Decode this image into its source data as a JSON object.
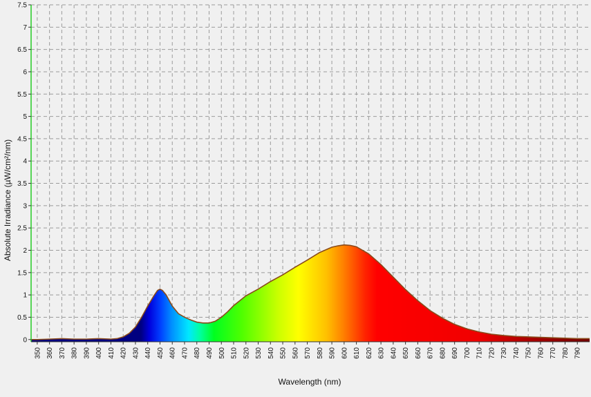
{
  "chart_data": {
    "type": "area",
    "xlabel": "Wavelength (nm)",
    "ylabel": "Absolute Irradiance (µW/cm²/nm)",
    "xlim": [
      345,
      800
    ],
    "ylim": [
      -0.05,
      7.5
    ],
    "grid": true,
    "x_ticks": [
      "350",
      "360",
      "370",
      "380",
      "390",
      "400",
      "410",
      "420",
      "430",
      "440",
      "450",
      "460",
      "470",
      "480",
      "490",
      "500",
      "510",
      "520",
      "530",
      "540",
      "550",
      "560",
      "570",
      "580",
      "590",
      "600",
      "610",
      "620",
      "630",
      "640",
      "650",
      "660",
      "670",
      "680",
      "690",
      "700",
      "710",
      "720",
      "730",
      "740",
      "750",
      "760",
      "770",
      "780",
      "790"
    ],
    "y_ticks": [
      "0",
      "0.5",
      "1",
      "1.5",
      "2",
      "2.5",
      "3",
      "3.5",
      "4",
      "4.5",
      "5",
      "5.5",
      "6",
      "6.5",
      "7",
      "7.5"
    ],
    "series": [
      {
        "x": [
          345,
          350,
          360,
          370,
          380,
          390,
          400,
          410,
          415,
          420,
          425,
          430,
          435,
          440,
          445,
          448,
          450,
          452,
          455,
          460,
          465,
          470,
          475,
          480,
          485,
          490,
          495,
          500,
          505,
          510,
          515,
          520,
          530,
          540,
          550,
          560,
          570,
          580,
          590,
          595,
          600,
          605,
          610,
          620,
          630,
          640,
          650,
          660,
          670,
          680,
          690,
          700,
          710,
          720,
          730,
          740,
          750,
          760,
          770,
          780,
          790,
          800
        ],
        "values": [
          0.0,
          0.0,
          0.01,
          0.02,
          0.01,
          0.01,
          0.02,
          0.01,
          0.02,
          0.06,
          0.14,
          0.28,
          0.5,
          0.75,
          0.98,
          1.1,
          1.13,
          1.1,
          1.0,
          0.75,
          0.58,
          0.5,
          0.44,
          0.39,
          0.37,
          0.37,
          0.41,
          0.5,
          0.62,
          0.76,
          0.87,
          0.98,
          1.13,
          1.3,
          1.45,
          1.62,
          1.78,
          1.95,
          2.07,
          2.1,
          2.12,
          2.11,
          2.08,
          1.92,
          1.68,
          1.4,
          1.12,
          0.87,
          0.65,
          0.48,
          0.34,
          0.24,
          0.17,
          0.12,
          0.09,
          0.07,
          0.06,
          0.05,
          0.04,
          0.03,
          0.02,
          0.02
        ]
      }
    ]
  }
}
